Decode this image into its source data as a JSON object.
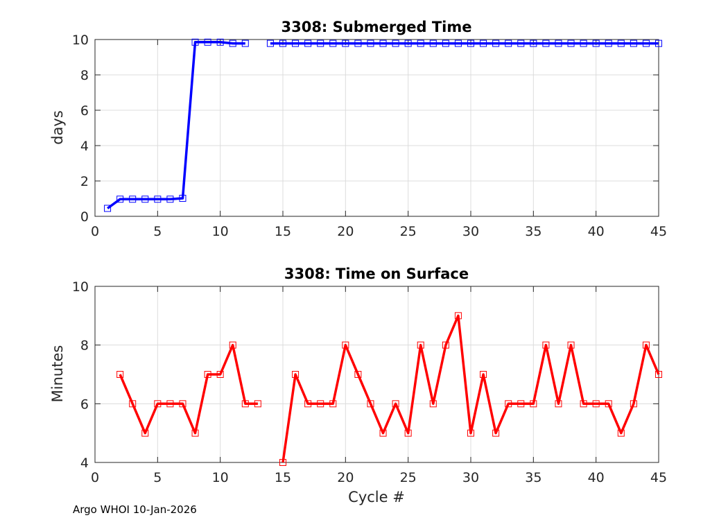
{
  "footer": "Argo WHOI 10-Jan-2026",
  "chart_data": [
    {
      "type": "line",
      "title": "3308: Submerged Time",
      "xlabel": "",
      "ylabel": "days",
      "xlim": [
        0,
        45
      ],
      "ylim": [
        0,
        10
      ],
      "xticks": [
        0,
        5,
        10,
        15,
        20,
        25,
        30,
        35,
        40,
        45
      ],
      "yticks": [
        0,
        2,
        4,
        6,
        8,
        10
      ],
      "grid": true,
      "color": "#0000ff",
      "marker": "square",
      "series": [
        {
          "name": "Submerged Time",
          "x": [
            1,
            2,
            3,
            4,
            5,
            6,
            7,
            8,
            9,
            10,
            11,
            12,
            14,
            15,
            16,
            17,
            18,
            19,
            20,
            21,
            22,
            23,
            24,
            25,
            26,
            27,
            28,
            29,
            30,
            31,
            32,
            33,
            34,
            35,
            36,
            37,
            38,
            39,
            40,
            41,
            42,
            43,
            44,
            45
          ],
          "values": [
            0.45,
            0.97,
            0.97,
            0.97,
            0.97,
            0.97,
            1.02,
            9.85,
            9.85,
            9.85,
            9.78,
            9.78,
            9.78,
            9.78,
            9.78,
            9.78,
            9.78,
            9.78,
            9.78,
            9.78,
            9.78,
            9.78,
            9.78,
            9.78,
            9.78,
            9.78,
            9.78,
            9.78,
            9.78,
            9.78,
            9.78,
            9.78,
            9.78,
            9.78,
            9.78,
            9.78,
            9.78,
            9.78,
            9.78,
            9.78,
            9.78,
            9.78,
            9.78,
            9.78
          ]
        }
      ]
    },
    {
      "type": "line",
      "title": "3308: Time on Surface",
      "xlabel": "Cycle #",
      "ylabel": "Minutes",
      "xlim": [
        0,
        45
      ],
      "ylim": [
        4,
        10
      ],
      "xticks": [
        0,
        5,
        10,
        15,
        20,
        25,
        30,
        35,
        40,
        45
      ],
      "yticks": [
        4,
        6,
        8,
        10
      ],
      "grid": true,
      "color": "#ff0000",
      "marker": "square",
      "series": [
        {
          "name": "Time on Surface",
          "x": [
            2,
            3,
            4,
            5,
            6,
            7,
            8,
            9,
            10,
            11,
            12,
            13,
            15,
            16,
            17,
            18,
            19,
            20,
            21,
            22,
            23,
            24,
            25,
            26,
            27,
            28,
            29,
            30,
            31,
            32,
            33,
            34,
            35,
            36,
            37,
            38,
            39,
            40,
            41,
            42,
            43,
            44,
            45
          ],
          "values": [
            7,
            6,
            5,
            6,
            6,
            6,
            5,
            7,
            7,
            8,
            6,
            6,
            4,
            7,
            6,
            6,
            6,
            8,
            7,
            6,
            5,
            6,
            5,
            8,
            6,
            8,
            9,
            5,
            7,
            5,
            6,
            6,
            6,
            8,
            6,
            8,
            6,
            6,
            6,
            5,
            6,
            8,
            7
          ]
        }
      ]
    }
  ]
}
